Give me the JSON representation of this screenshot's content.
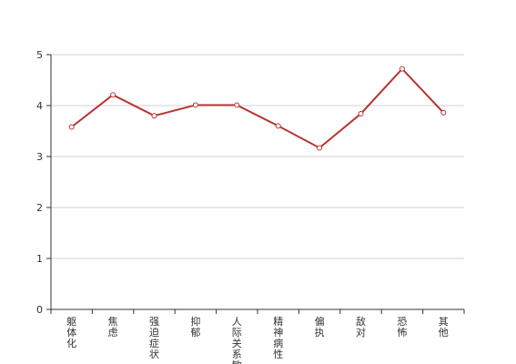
{
  "chart_data": {
    "type": "line",
    "title": "",
    "xlabel": "",
    "ylabel": "",
    "categories": [
      "躯体化",
      "焦虑",
      "强迫症状",
      "抑郁",
      "人际关系敏感",
      "精神病性",
      "偏执",
      "敌对",
      "恐怖",
      "其他"
    ],
    "series": [
      {
        "values": [
          3.58,
          4.21,
          3.8,
          4.01,
          4.01,
          3.6,
          3.17,
          3.84,
          4.72,
          3.86
        ]
      }
    ],
    "ylim": [
      0,
      5
    ],
    "yticks": [
      0,
      1,
      2,
      3,
      4,
      5
    ],
    "grid": true,
    "line_color": "#b83232",
    "grid_color": "#d0d0d0",
    "axis_color": "#333333"
  }
}
